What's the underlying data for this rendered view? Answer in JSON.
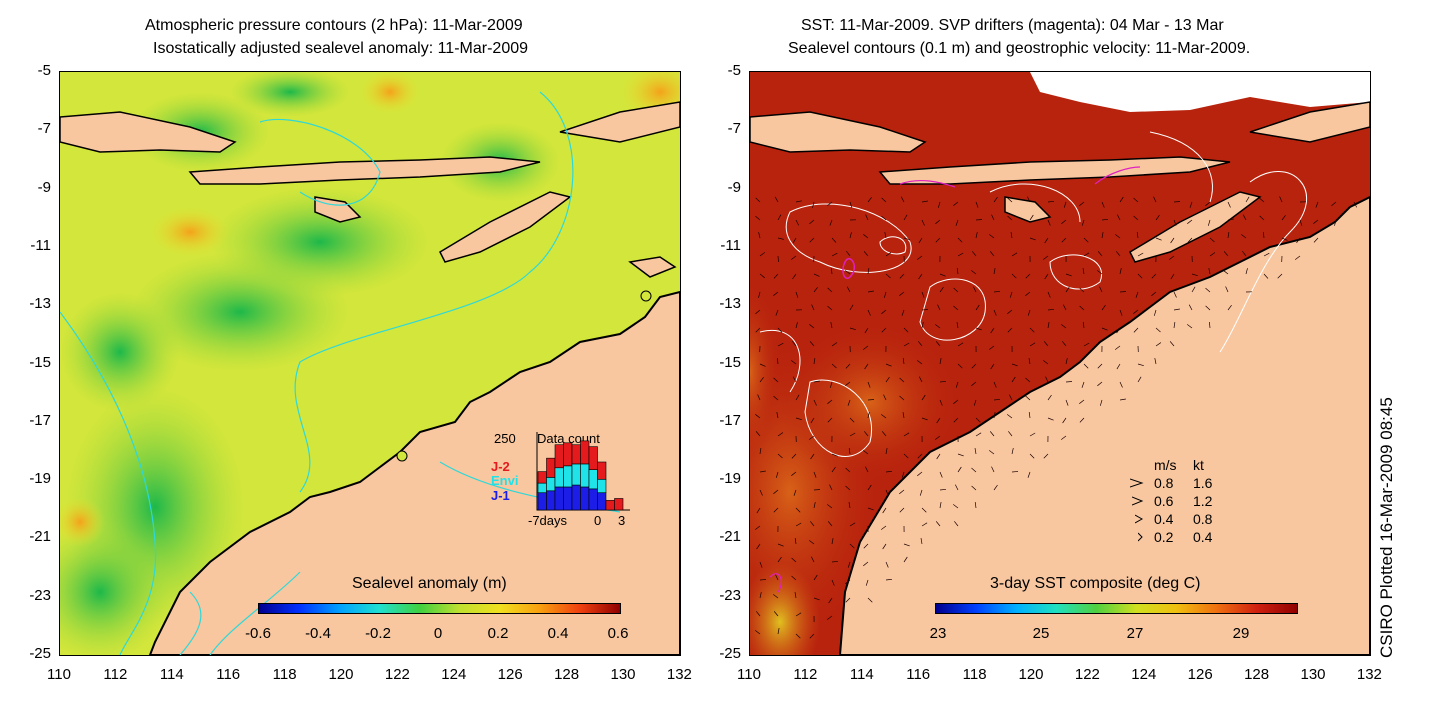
{
  "left": {
    "title_line1": "Atmospheric pressure contours (2 hPa): 11-Mar-2009",
    "title_line2": "Isostatically adjusted sealevel anomaly: 11-Mar-2009",
    "colorbar_title": "Sealevel anomaly (m)",
    "colorbar_ticks": [
      "-0.6",
      "-0.4",
      "-0.2",
      "0",
      "0.2",
      "0.4",
      "0.6"
    ],
    "inset": {
      "count_label": "250",
      "title": "Data count",
      "legend": [
        "J-2",
        "Envi",
        "J-1"
      ],
      "legend_colors": [
        "#e41a1c",
        "#1fe3e8",
        "#1d1de8"
      ],
      "xlabel_left": "-7days",
      "xlabel_mid": "0",
      "xlabel_right": "3",
      "bars": [
        {
          "j1": 0.09,
          "envi": 0.05,
          "j2": 0.06
        },
        {
          "j1": 0.1,
          "envi": 0.07,
          "j2": 0.1
        },
        {
          "j1": 0.12,
          "envi": 0.1,
          "j2": 0.12
        },
        {
          "j1": 0.12,
          "envi": 0.11,
          "j2": 0.12
        },
        {
          "j1": 0.13,
          "envi": 0.11,
          "j2": 0.1
        },
        {
          "j1": 0.12,
          "envi": 0.12,
          "j2": 0.12
        },
        {
          "j1": 0.11,
          "envi": 0.1,
          "j2": 0.12
        },
        {
          "j1": 0.09,
          "envi": 0.07,
          "j2": 0.09
        },
        {
          "j1": 0.0,
          "envi": 0.0,
          "j2": 0.05
        },
        {
          "j1": 0.0,
          "envi": 0.0,
          "j2": 0.06
        }
      ]
    }
  },
  "right": {
    "title_line1": "SST: 11-Mar-2009. SVP drifters (magenta): 04 Mar - 13 Mar",
    "title_line2": "Sealevel contours (0.1 m) and geostrophic velocity: 11-Mar-2009.",
    "colorbar_title": "3-day SST composite (deg C)",
    "colorbar_ticks": [
      "23",
      "25",
      "27",
      "29"
    ],
    "speed_legend": {
      "header_ms": "m/s",
      "header_kt": "kt",
      "rows": [
        {
          "ms": "0.8",
          "kt": "1.6"
        },
        {
          "ms": "0.6",
          "kt": "1.2"
        },
        {
          "ms": "0.4",
          "kt": "0.8"
        },
        {
          "ms": "0.2",
          "kt": "0.4"
        }
      ]
    }
  },
  "axes": {
    "yticks": [
      "-5",
      "-7",
      "-9",
      "-11",
      "-13",
      "-15",
      "-17",
      "-19",
      "-21",
      "-23",
      "-25"
    ],
    "xticks": [
      "110",
      "112",
      "114",
      "116",
      "118",
      "120",
      "122",
      "124",
      "126",
      "128",
      "130",
      "132"
    ]
  },
  "credit": "CSIRO Plotted 16-Mar-2009 08:45",
  "colors": {
    "land": "#f8c7a0",
    "sea_left": "#d6e83a",
    "sea_right": "#b8230d",
    "contour_cyan": "#2fd8d8",
    "drifter_magenta": "#e020c0"
  }
}
